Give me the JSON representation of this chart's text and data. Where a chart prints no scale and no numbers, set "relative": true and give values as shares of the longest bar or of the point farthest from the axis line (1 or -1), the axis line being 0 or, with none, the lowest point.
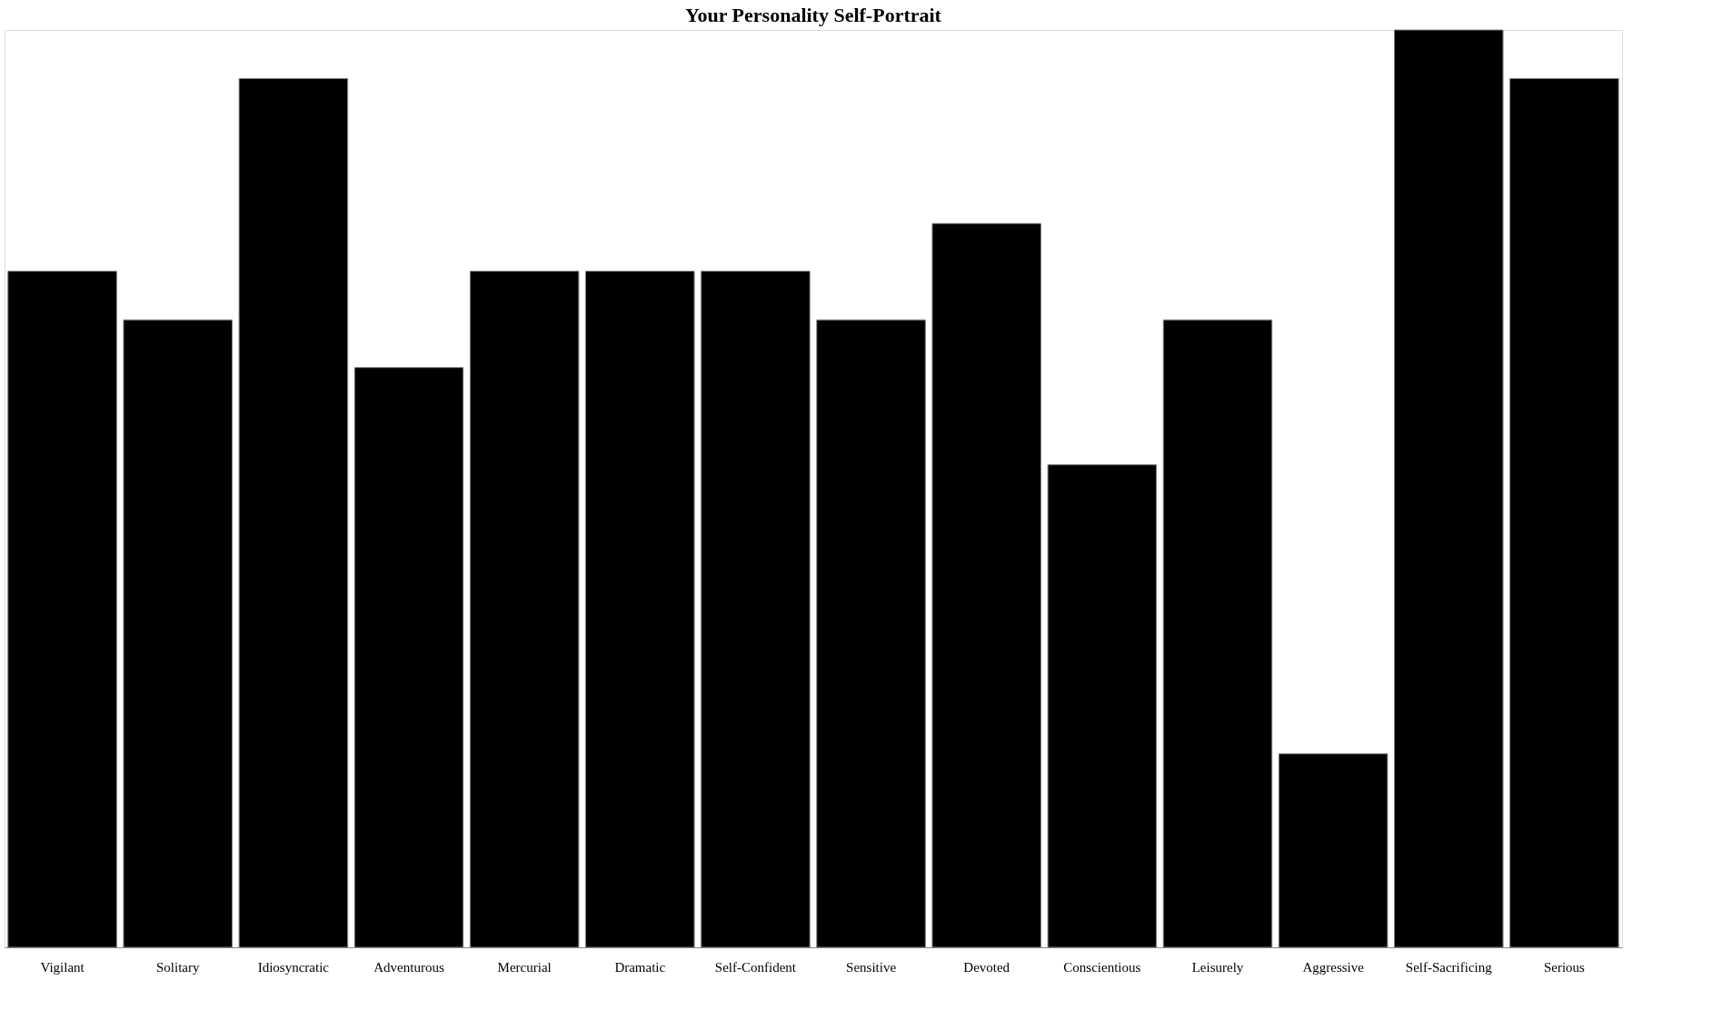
{
  "chart_data": {
    "type": "bar",
    "title": "Your Personality Self-Portrait",
    "relative": true,
    "color": "#000000",
    "grid": false,
    "categories": [
      "Vigilant",
      "Solitary",
      "Idiosyncratic",
      "Adventurous",
      "Mercurial",
      "Dramatic",
      "Self-Confident",
      "Sensitive",
      "Devoted",
      "Conscientious",
      "Leisurely",
      "Aggressive",
      "Self-Sacrificing",
      "Serious"
    ],
    "values": [
      0.737,
      0.684,
      0.947,
      0.632,
      0.737,
      0.737,
      0.737,
      0.684,
      0.789,
      0.526,
      0.684,
      0.211,
      1,
      0.947
    ]
  }
}
